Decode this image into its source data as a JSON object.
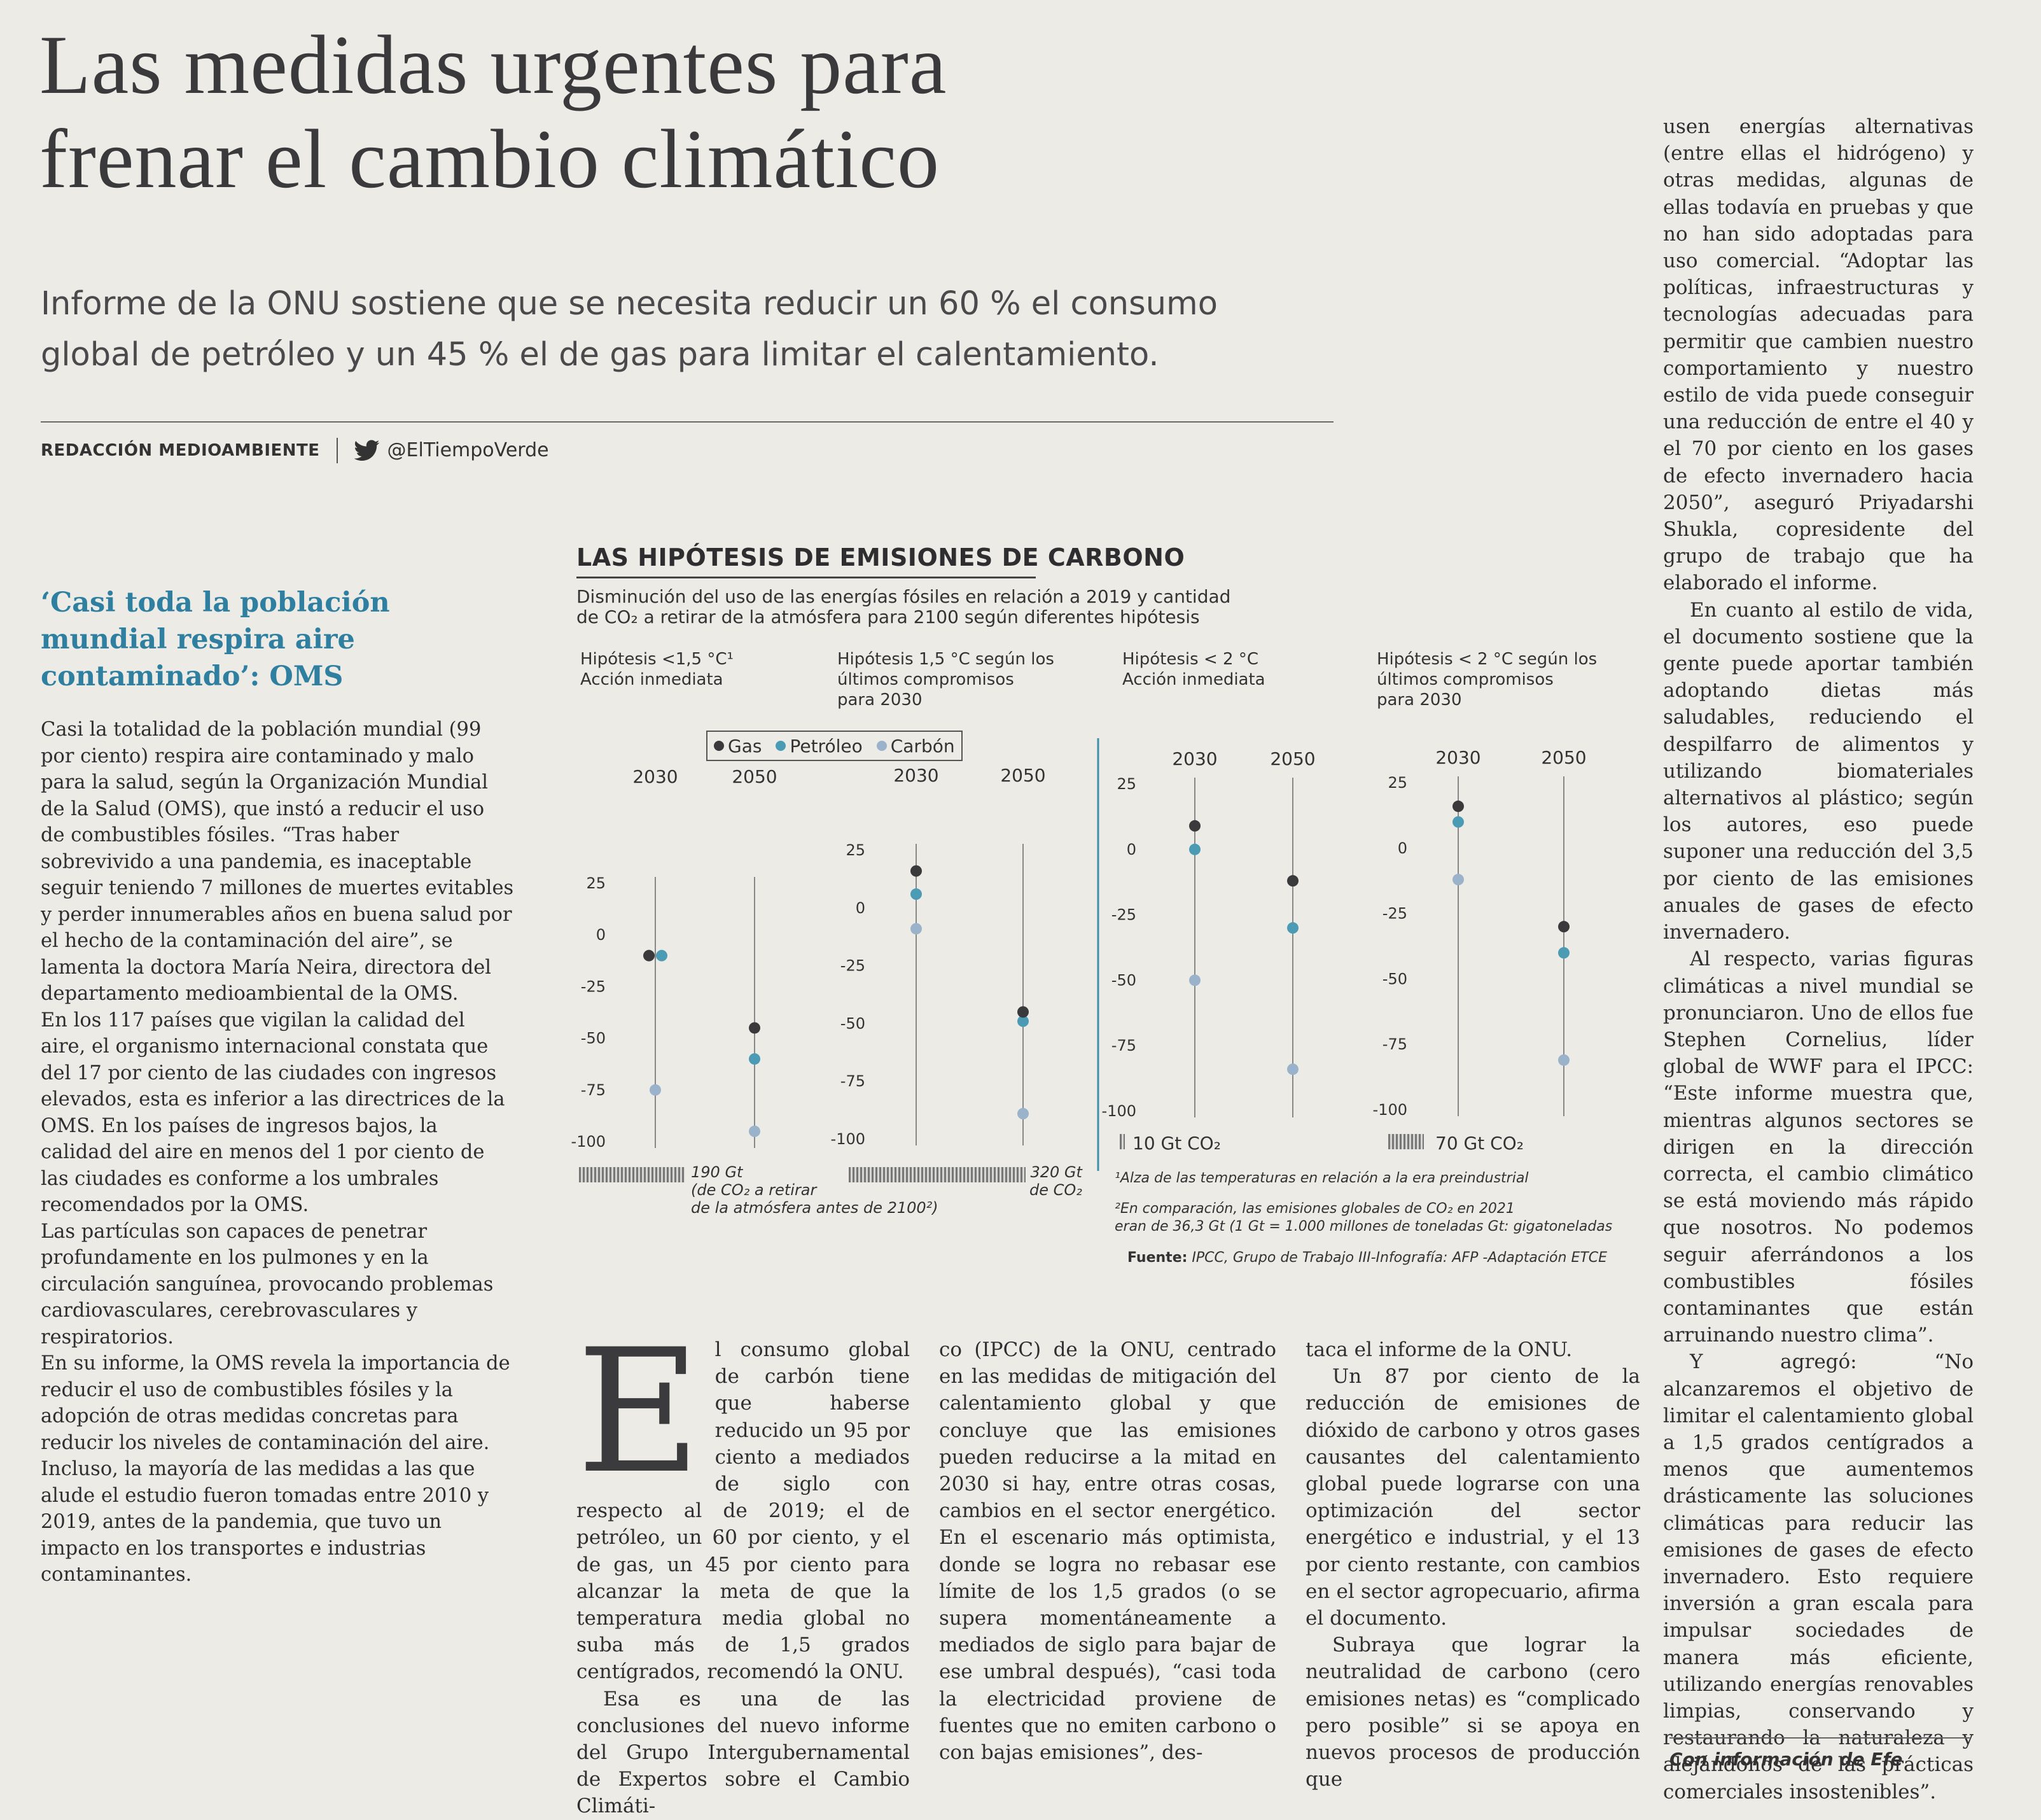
{
  "article": {
    "headline_line1": "Las medidas urgentes para",
    "headline_line2": "frenar el cambio climático",
    "subtitle_line1": "Informe de la ONU sostiene que se necesita reducir un 60 % el consumo",
    "subtitle_line2": "global de petróleo y un 45 % el de gas para limitar el calentamiento.",
    "byline_author": "REDACCIÓN MEDIOAMBIENTE",
    "byline_handle": "@ElTiempoVerde",
    "byline_icon": "twitter-bird-icon"
  },
  "sidebar": {
    "title": "‘Casi toda la población mundial respira aire contaminado’: OMS",
    "paragraphs": [
      "Casi la totalidad de la población mundial (99 por ciento) respira aire contaminado y malo para la salud, según la Organización Mundial de la Salud (OMS), que instó a reducir el uso de combustibles fósiles. “Tras haber sobrevivido a una pandemia, es inaceptable seguir teniendo 7 millones de muertes evitables y perder innumerables años en buena salud por el hecho de la contaminación del aire”, se lamenta la doctora María Neira, directora del departamento medioambiental de la OMS.",
      "En los 117 países que vigilan la calidad del aire, el organismo internacional constata que del 17 por ciento de las ciudades con ingresos elevados, esta es inferior a las directrices de la OMS. En los países de ingresos bajos, la calidad del aire en menos del 1 por ciento de las ciudades es conforme a los umbrales recomendados por la OMS.",
      "Las partículas son capaces de penetrar profundamente en los pulmones y en la circulación sanguínea, provocando problemas cardiovasculares, cerebrovasculares y respiratorios.",
      "En su informe, la OMS revela la importancia de reducir el uso de combustibles fósiles y la adopción de otras medidas concretas para reducir los niveles de contaminación del aire. Incluso, la mayoría de las medidas a las que alude el estudio fueron tomadas entre 2010 y 2019, antes de la pandemia, que tuvo un impacto en los transportes e industrias contaminantes."
    ]
  },
  "body": {
    "dropcap": "E",
    "col1": [
      "l consumo global de carbón tiene que haberse reducido un 95 por ciento a mediados de siglo con respecto al de 2019; el de petróleo, un 60 por ciento, y el de gas, un 45 por ciento para alcanzar la meta de que la temperatura media global no suba más de 1,5 grados centígrados, recomendó la ONU.",
      "Esa es una de las conclusiones del nuevo informe del Grupo Intergubernamental de Expertos sobre el Cambio Climáti-"
    ],
    "col2": [
      "co (IPCC) de la ONU, centrado en las medidas de mitigación del calentamiento global y que concluye que las emisiones pueden reducirse a la mitad en 2030 si hay, entre otras cosas, cambios en el sector energético. En el escenario más optimista, donde se logra no rebasar ese límite de los 1,5 grados (o se supera momentáneamente a mediados de siglo para bajar de ese umbral después), “casi toda la electricidad proviene de fuentes que no emiten carbono o con bajas emisiones”, des-"
    ],
    "col3": [
      "taca el informe de la ONU.",
      "Un 87 por ciento de la reducción de emisiones de dióxido de carbono y otros gases causantes del calentamiento global puede lograrse con una optimización del sector energético e industrial, y el 13 por ciento restante, con cambios en el sector agropecuario, afirma el documento.",
      "Subraya que lograr la neutralidad de carbono (cero emisiones netas) es “complicado pero posible” si se apoya en nuevos procesos de producción que"
    ],
    "col4": [
      "usen energías alternativas (entre ellas el hidrógeno) y otras medidas, algunas de ellas todavía en pruebas y que no han sido adoptadas para uso comercial. “Adoptar las políticas, infraestructuras y tecnologías adecuadas para permitir que cambien nuestro comportamiento y nuestro estilo de vida puede conseguir una reducción de entre el 40 y el 70 por ciento en los gases de efecto invernadero hacia 2050”, aseguró Priyadarshi Shukla, copresidente del grupo de trabajo que ha elaborado el informe.",
      "En cuanto al estilo de vida, el documento sostiene que la gente puede aportar también adoptando dietas más saludables, reduciendo el despilfarro de alimentos y utilizando biomateriales alternativos al plástico; según los autores, eso puede suponer una reducción del 3,5 por ciento de las emisiones anuales de gases de efecto invernadero.",
      "Al respecto, varias figuras climáticas a nivel mundial se pronunciaron. Uno de ellos fue Stephen Cornelius, líder global de WWF para el IPCC: “Este informe muestra que, mientras algunos sectores se dirigen en la dirección correcta, el cambio climático se está moviendo más rápido que nosotros. No podemos seguir aferrándonos a los combustibles fósiles contaminantes que están arruinando nuestro clima”.",
      "Y agregó: “No alcanzaremos el objetivo de limitar el calentamiento global a 1,5 grados centígrados a menos que aumentemos drásticamente las soluciones climáticas para reducir las emisiones de gases de efecto invernadero. Esto requiere inversión a gran escala para impulsar sociedades de manera más eficiente, utilizando energías renovables limpias, conservando y restaurando la naturaleza y alejándonos de las prácticas comerciales insostenibles”."
    ],
    "credit": "Con información de Efe"
  },
  "chart_data": {
    "type": "scatter",
    "title": "LAS HIPÓTESIS DE EMISIONES DE CARBONO",
    "subtitle_line1": "Disminución del uso de las energías fósiles en relación a 2019 y cantidad",
    "subtitle_line2": "de CO₂ a retirar de la atmósfera para 2100 según diferentes hipótesis",
    "legend": [
      "Gas",
      "Petróleo",
      "Carbón"
    ],
    "colors": {
      "Gas": "#3a3a3c",
      "Petróleo": "#4b9bb5",
      "Carbón": "#9ab3cb"
    },
    "ylim": [
      -100,
      25
    ],
    "yticks": [
      "25",
      "0",
      "-25",
      "-50",
      "-75",
      "-100"
    ],
    "panels": [
      {
        "hypothesis_line1": "Hipótesis <1,5 °C¹",
        "hypothesis_line2": "Acción inmediata",
        "hypothesis_line3": "",
        "years": [
          "2030",
          "2050"
        ],
        "points": {
          "Gas": [
            -10,
            -45
          ],
          "Petróleo": [
            -10,
            -60
          ],
          "Carbón": [
            -75,
            -95
          ]
        },
        "budget_label_line1": "190 Gt",
        "budget_label_line2": "(de CO₂ a retirar",
        "budget_label_line3": "de la atmósfera antes de 2100²)"
      },
      {
        "hypothesis_line1": "Hipótesis 1,5 °C según los",
        "hypothesis_line2": "últimos compromisos",
        "hypothesis_line3": "para 2030",
        "years": [
          "2030",
          "2050"
        ],
        "points": {
          "Gas": [
            16,
            -45
          ],
          "Petróleo": [
            6,
            -49
          ],
          "Carbón": [
            -9,
            -89
          ]
        },
        "budget_label_line1": "320 Gt",
        "budget_label_line2": "de CO₂",
        "budget_label_line3": ""
      },
      {
        "hypothesis_line1": "Hipótesis < 2 °C",
        "hypothesis_line2": "Acción inmediata",
        "hypothesis_line3": "",
        "years": [
          "2030",
          "2050"
        ],
        "points": {
          "Gas": [
            9,
            -12
          ],
          "Petróleo": [
            0,
            -30
          ],
          "Carbón": [
            -50,
            -84
          ]
        },
        "budget_label_line1": "10 Gt CO₂",
        "budget_label_line2": "",
        "budget_label_line3": ""
      },
      {
        "hypothesis_line1": "Hipótesis < 2 °C según los",
        "hypothesis_line2": "últimos compromisos",
        "hypothesis_line3": "para 2030",
        "years": [
          "2030",
          "2050"
        ],
        "points": {
          "Gas": [
            16,
            -30
          ],
          "Petróleo": [
            10,
            -40
          ],
          "Carbón": [
            -12,
            -81
          ]
        },
        "budget_label_line1": "70 Gt CO₂",
        "budget_label_line2": "",
        "budget_label_line3": ""
      }
    ],
    "note1": "¹Alza de las temperaturas en relación a la era preindustrial",
    "note2_line1": "²En comparación, las emisiones globales de CO₂ en 2021",
    "note2_line2": "eran de 36,3 Gt (1 Gt = 1.000 millones de toneladas  Gt: gigatoneladas",
    "source_label": "Fuente:",
    "source": "IPCC, Grupo de Trabajo III-Infografía: AFP -Adaptación ETCE"
  }
}
